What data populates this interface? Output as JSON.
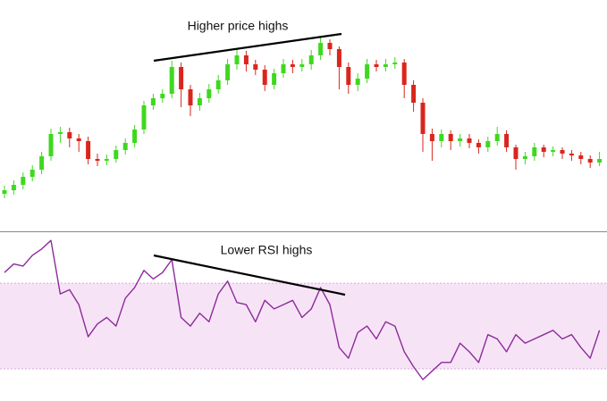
{
  "chart_data": [
    {
      "type": "candlestick",
      "annotation": "Higher price highs",
      "up_color": "#3fd81f",
      "down_color": "#d9261c",
      "ylim": [
        0,
        220
      ],
      "open": [
        33,
        37,
        43,
        52,
        60,
        75,
        100,
        102,
        95,
        92,
        72,
        70,
        72,
        82,
        90,
        105,
        132,
        140,
        145,
        175,
        150,
        132,
        140,
        150,
        160,
        178,
        188,
        178,
        172,
        155,
        168,
        178,
        175,
        178,
        188,
        202,
        195,
        175,
        155,
        162,
        178,
        175,
        178,
        180,
        155,
        135,
        100,
        92,
        100,
        92,
        95,
        90,
        85,
        92,
        100,
        85,
        72,
        75,
        85,
        80,
        82,
        78,
        76,
        72,
        68
      ],
      "high": [
        42,
        48,
        57,
        65,
        80,
        106,
        108,
        107,
        100,
        97,
        78,
        77,
        87,
        95,
        110,
        137,
        145,
        150,
        182,
        180,
        155,
        146,
        156,
        166,
        184,
        196,
        193,
        183,
        177,
        173,
        184,
        183,
        184,
        194,
        208,
        206,
        198,
        180,
        168,
        184,
        183,
        184,
        186,
        184,
        160,
        140,
        106,
        105,
        104,
        100,
        100,
        94,
        97,
        108,
        104,
        88,
        80,
        90,
        88,
        86,
        85,
        82,
        80,
        76,
        80
      ],
      "low": [
        28,
        32,
        38,
        47,
        55,
        70,
        90,
        85,
        80,
        66,
        64,
        65,
        68,
        77,
        85,
        100,
        127,
        135,
        140,
        130,
        120,
        126,
        135,
        145,
        155,
        172,
        170,
        166,
        148,
        150,
        163,
        168,
        170,
        172,
        183,
        188,
        150,
        145,
        148,
        157,
        170,
        170,
        173,
        140,
        125,
        80,
        70,
        85,
        82,
        86,
        84,
        78,
        80,
        87,
        80,
        60,
        66,
        70,
        74,
        75,
        72,
        70,
        66,
        62,
        64
      ],
      "close": [
        37,
        43,
        52,
        60,
        75,
        100,
        102,
        95,
        92,
        72,
        70,
        72,
        82,
        90,
        105,
        132,
        140,
        145,
        175,
        150,
        132,
        140,
        150,
        160,
        178,
        188,
        178,
        172,
        155,
        168,
        178,
        175,
        178,
        188,
        202,
        195,
        175,
        155,
        162,
        178,
        175,
        178,
        180,
        155,
        135,
        100,
        92,
        100,
        92,
        95,
        90,
        85,
        92,
        100,
        85,
        72,
        75,
        85,
        80,
        82,
        78,
        76,
        72,
        68,
        72
      ]
    },
    {
      "type": "line",
      "annotation": "Lower RSI highs",
      "color": "#8d2a9b",
      "band_color": "#f2d9f2",
      "ylim": [
        15,
        93
      ],
      "band": [
        30,
        70
      ],
      "values": [
        75,
        79,
        78,
        83,
        86,
        90,
        65,
        67,
        60,
        45,
        51,
        54,
        50,
        63,
        68,
        76,
        72,
        75,
        81,
        54,
        50,
        56,
        52,
        65,
        71,
        61,
        60,
        52,
        62,
        58,
        60,
        62,
        54,
        58,
        68,
        60,
        40,
        35,
        47,
        50,
        44,
        52,
        50,
        38,
        31,
        25,
        29,
        33,
        33,
        42,
        38,
        33,
        46,
        44,
        38,
        46,
        42,
        44,
        46,
        48,
        44,
        46,
        40,
        35,
        48
      ]
    }
  ]
}
